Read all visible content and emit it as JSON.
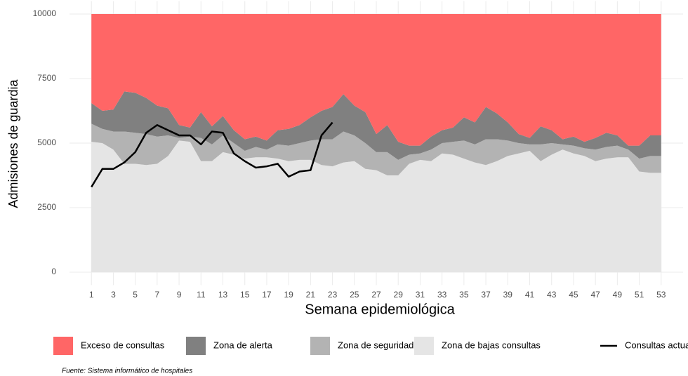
{
  "chart_data": {
    "type": "area",
    "x_label": "Semana epidemiológica",
    "y_label": "Admisiones de guardia",
    "footnote": "Fuente: Sistema informático de hospitales",
    "x": [
      1,
      2,
      3,
      4,
      5,
      6,
      7,
      8,
      9,
      10,
      11,
      12,
      13,
      14,
      15,
      16,
      17,
      18,
      19,
      20,
      21,
      22,
      23,
      24,
      25,
      26,
      27,
      28,
      29,
      30,
      31,
      32,
      33,
      34,
      35,
      36,
      37,
      38,
      39,
      40,
      41,
      42,
      43,
      44,
      45,
      46,
      47,
      48,
      49,
      50,
      51,
      52,
      53
    ],
    "xlim": [
      -1,
      55
    ],
    "xticks": [
      1,
      3,
      5,
      7,
      9,
      11,
      13,
      15,
      17,
      19,
      21,
      23,
      25,
      27,
      29,
      31,
      33,
      35,
      37,
      39,
      41,
      43,
      45,
      47,
      49,
      51,
      53
    ],
    "ylim": [
      -500,
      10500
    ],
    "yticks": [
      0,
      2500,
      5000,
      7500,
      10000
    ],
    "grid": true,
    "stacked": true,
    "series": [
      {
        "name": "Exceso de consultas",
        "type": "area",
        "color": "#ff6666",
        "values": [
          3450,
          3750,
          3700,
          3000,
          3050,
          3250,
          3550,
          3650,
          4300,
          4400,
          3800,
          4350,
          3950,
          4500,
          4850,
          4750,
          4900,
          4500,
          4450,
          4300,
          4000,
          3750,
          3600,
          3100,
          3550,
          3800,
          4650,
          4300,
          4950,
          5100,
          5100,
          4750,
          4500,
          4400,
          4000,
          4200,
          3600,
          3850,
          4200,
          4650,
          4800,
          4350,
          4500,
          4850,
          4750,
          4950,
          4800,
          4600,
          4700,
          5100,
          5100,
          4700,
          4700
        ]
      },
      {
        "name": "Zona de alerta",
        "type": "area",
        "color": "#808080",
        "values": [
          800,
          700,
          850,
          1550,
          1550,
          1400,
          1200,
          1050,
          500,
          350,
          1000,
          700,
          750,
          500,
          450,
          400,
          350,
          550,
          650,
          700,
          900,
          1100,
          1250,
          1450,
          1150,
          1200,
          700,
          1050,
          700,
          350,
          300,
          500,
          500,
          550,
          900,
          850,
          1250,
          1000,
          700,
          350,
          250,
          700,
          500,
          200,
          350,
          250,
          450,
          550,
          400,
          150,
          500,
          800,
          800
        ]
      },
      {
        "name": "Zona de seguridad",
        "type": "area",
        "color": "#b3b3b3",
        "values": [
          700,
          550,
          700,
          1250,
          1200,
          1200,
          1050,
          800,
          100,
          200,
          900,
          650,
          650,
          450,
          300,
          400,
          300,
          550,
          600,
          650,
          750,
          1000,
          1050,
          1200,
          1000,
          1000,
          700,
          900,
          600,
          350,
          250,
          450,
          400,
          500,
          700,
          700,
          1000,
          850,
          600,
          400,
          250,
          650,
          450,
          200,
          300,
          300,
          450,
          450,
          450,
          300,
          500,
          650,
          650
        ]
      },
      {
        "name": "Zona de bajas consultas",
        "type": "area",
        "color": "#e5e5e5",
        "values": [
          5050,
          5000,
          4750,
          4200,
          4200,
          4150,
          4200,
          4500,
          5100,
          5050,
          4300,
          4300,
          4650,
          4550,
          4400,
          4450,
          4450,
          4400,
          4300,
          4350,
          4350,
          4150,
          4100,
          4250,
          4300,
          4000,
          3950,
          3750,
          3750,
          4200,
          4350,
          4300,
          4600,
          4550,
          4400,
          4250,
          4150,
          4300,
          4500,
          4600,
          4700,
          4300,
          4550,
          4750,
          4600,
          4500,
          4300,
          4400,
          4450,
          4450,
          3900,
          3850,
          3850
        ]
      },
      {
        "name": "Consultas actuales",
        "type": "line",
        "color": "#000000",
        "values": [
          3300,
          4000,
          4000,
          4250,
          4650,
          5400,
          5700,
          5500,
          5300,
          5300,
          4950,
          5450,
          5400,
          4600,
          4300,
          4050,
          4100,
          4200,
          3700,
          3900,
          3950,
          5300,
          5800,
          null,
          null,
          null,
          null,
          null,
          null,
          null,
          null,
          null,
          null,
          null,
          null,
          null,
          null,
          null,
          null,
          null,
          null,
          null,
          null,
          null,
          null,
          null,
          null,
          null,
          null,
          null,
          null,
          null,
          null
        ]
      }
    ]
  }
}
